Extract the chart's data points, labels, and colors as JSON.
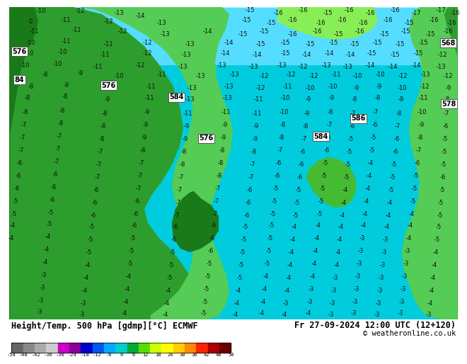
{
  "title_left": "Height/Temp. 500 hPa [gdmp][°C] ECMWF",
  "title_right": "Fr 27-09-2024 12:00 UTC (12+120)",
  "copyright": "© weatheronline.co.uk",
  "colorbar_ticks": [
    -54,
    -48,
    -42,
    -36,
    -30,
    -24,
    -18,
    -12,
    -6,
    0,
    6,
    12,
    18,
    24,
    30,
    36,
    42,
    48,
    54
  ],
  "colorbar_colors": [
    "#696969",
    "#888888",
    "#aaaaaa",
    "#cccccc",
    "#cc00cc",
    "#8800bb",
    "#0000dd",
    "#0055ff",
    "#00aaff",
    "#00dddd",
    "#00bb44",
    "#44dd00",
    "#ccff00",
    "#ffff00",
    "#ffcc00",
    "#ff8800",
    "#ff2200",
    "#cc0000",
    "#880000"
  ],
  "map_ocean_color": "#00ccdd",
  "map_land_color_dark": "#1a7a1a",
  "map_land_color_medium": "#2d9e2d",
  "map_land_color_light": "#55cc55",
  "map_land_color_bright": "#66ee44",
  "top_cyan_color": "#55ddff",
  "bottom_bar_bg": "#ffffff",
  "title_fontsize": 8.5,
  "number_fontsize": 6.0,
  "number_color": "#111111",
  "height_label_color": "#000000",
  "height_label_bg": "#ffffff",
  "contour_color_dark": "#000000",
  "contour_color_white": "#ffffff"
}
